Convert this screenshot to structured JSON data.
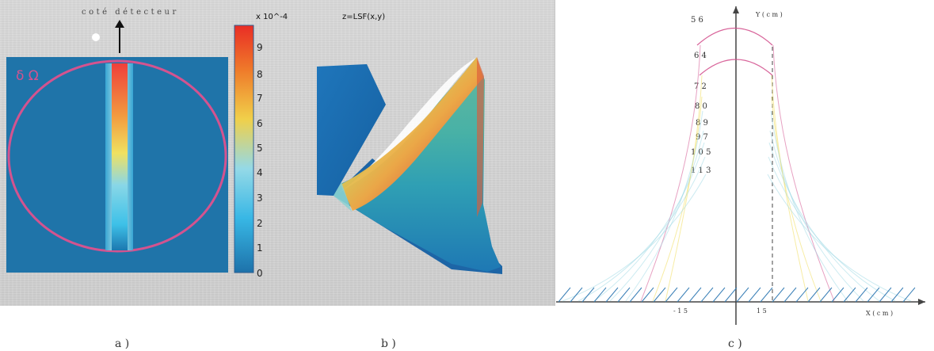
{
  "figure": {
    "panels": [
      {
        "id": "a",
        "caption": "a )",
        "top_text": "coté détecteur",
        "symbol": "δ Ω",
        "colorbar_exponent": "x 10^-4",
        "colorbar_ticks": [
          "9",
          "8",
          "7",
          "6",
          "5",
          "4",
          "3",
          "2",
          "1",
          "0"
        ]
      },
      {
        "id": "b",
        "caption": "b )",
        "surface_title": "z=LSF(x,y)"
      },
      {
        "id": "c",
        "caption": "c )",
        "y_axis_label": "Y ( c m )",
        "x_axis_label": "X ( c m )",
        "y_ticks": [
          "5 6",
          "6 4",
          "7 2",
          "8 0",
          "8 9",
          "9 7",
          "1 0 5",
          "1 1 3"
        ],
        "x_ticks": [
          "- 1 5",
          "1 5"
        ]
      }
    ]
  },
  "colors": {
    "photo_bg": "#d6d6d6",
    "blue_bg": "#1f74a9",
    "pink": "#d4538f",
    "cyan": "#65cce7",
    "yellow": "#f1dc5a",
    "orange": "#ef8b38",
    "red": "#e84235",
    "dark_blue": "#1b5c95"
  }
}
